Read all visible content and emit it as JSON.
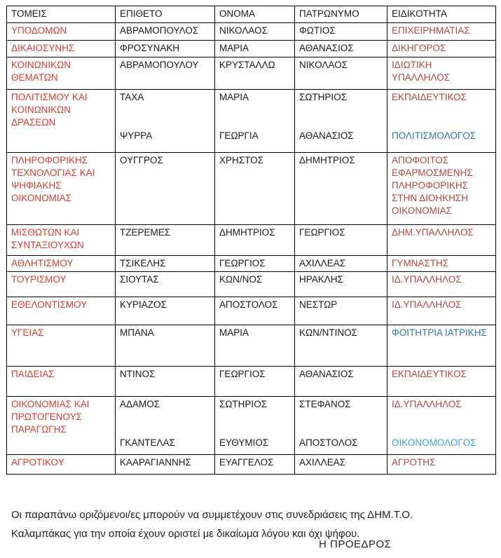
{
  "colors": {
    "sector_red": "#e03a2e",
    "red": "#b9453d",
    "blue": "#2e75b6",
    "lightblue": "#3ba3db",
    "text": "#1b1b1b"
  },
  "table": {
    "headers": [
      "ΤΟΜΕΙΣ",
      "ΕΠΙΘΕΤΟ",
      "ΟΝΟΜΑ",
      "ΠΑΤΡΩΝΥΜΟ",
      "ΕΙΔΙΚΟΤΗΤΑ"
    ],
    "rows": [
      {
        "sector": "ΥΠΟΔΟΜΩΝ",
        "entries": [
          {
            "surname": "ΑΒΡΑΜΟΠΟΥΛΟΣ",
            "name": "ΝΙΚΟΛΑΟΣ",
            "patronym": "ΦΩΤΙΟΣ",
            "specialty": "ΕΠΙΧΕΙΡΗΜΑΤΙΑΣ",
            "specialty_color": "red"
          }
        ]
      },
      {
        "sector": "ΔΙΚΑΙΟΣΥΝΗΣ",
        "entries": [
          {
            "surname": "ΦΡΟΣΥΝΑΚΗ",
            "name": "ΜΑΡΙΑ",
            "patronym": "ΑΘΑΝΑΣΙΟΣ",
            "specialty": "ΔΙΚΗΓΟΡΟΣ",
            "specialty_color": "red"
          }
        ]
      },
      {
        "sector": "ΚΟΙΝΩΝΙΚΩΝ ΘΕΜΑΤΩΝ",
        "entries": [
          {
            "surname": "ΑΒΡΑΜΟΠΟΥΛΟΥ",
            "name": "ΚΡΥΣΤΑΛΛΩ",
            "patronym": "ΝΙΚΟΛΑΟΣ",
            "specialty": "ΙΔΙΩΤΙΚΗ ΥΠΑΛΛΗΛΟΣ",
            "specialty_color": "red"
          }
        ]
      },
      {
        "sector": "ΠΟΛΙΤΙΣΜΟΥ ΚΑΙ ΚΟΙΝΩΝΙΚΩΝ ΔΡΑΣΕΩΝ",
        "entries": [
          {
            "surname": "ΤΑΧΑ",
            "name": "ΜΑΡΙΑ",
            "patronym": "ΣΩΤΗΡΙΟΣ",
            "specialty": "ΕΚΠΑΙΔΕΥΤΙΚΟΣ",
            "specialty_color": "red"
          },
          {
            "surname": "ΨΥΡΡΑ",
            "name": "ΓΕΩΡΓΙΑ",
            "patronym": "ΑΘΑΝΑΣΙΟΣ",
            "specialty": "ΠΟΛΙΤΙΣΜΟΛΟΓΟΣ",
            "specialty_color": "blue"
          }
        ]
      },
      {
        "sector": "ΠΛΗΡΟΦΟΡΙΚΗΣ ΤΕΧΝΟΛΟΓΙΑΣ ΚΑΙ ΨΗΦΙΑΚΗΣ ΟΙΚΟΝΟΜΙΑΣ",
        "entries": [
          {
            "surname": "ΟΥΓΓΡΟΣ",
            "name": "ΧΡΗΣΤΟΣ",
            "patronym": "ΔΗΜΗΤΡΙΟΣ",
            "specialty": "ΑΠΟΦΟΙΤΟΣ ΕΦΑΡΜΟΣΜΕΝΗΣ ΠΛΗΡΟΦΟΡΙΚΗΣ ΣΤΗΝ ΔΙΟΗΚΗΣΗ ΟΙΚΟΝΟΜΙΑΣ",
            "specialty_color": "red"
          }
        ]
      },
      {
        "sector": "ΜΙΣΘΩΤΩΝ ΚΑΙ ΣΥΝΤΑΞΙΟΥΧΩΝ",
        "entries": [
          {
            "surname": "ΤΖΕΡΕΜΕΣ",
            "name": "ΔΗΜΗΤΡΙΟΣ",
            "patronym": "ΓΕΩΡΓΙΟΣ",
            "specialty": "ΔΗΜ.ΥΠΑΛΛΗΛΟΣ",
            "specialty_color": "red"
          }
        ]
      },
      {
        "sector": "ΑΘΛΗΤΙΣΜΟΥ",
        "entries": [
          {
            "surname": "ΤΣΙΚΕΛΗΣ",
            "name": "ΓΕΩΡΓΙΟΣ",
            "patronym": "ΑΧΙΛΛΕΑΣ",
            "specialty": "ΓΥΜΝΑΣΤΗΣ",
            "specialty_color": "red"
          }
        ]
      },
      {
        "sector": "ΤΟΥΡΙΣΜΟΥ",
        "entries": [
          {
            "surname": "ΣΙΟΥΤΑΣ",
            "name": "ΚΩΝ/ΝΟΣ",
            "patronym": "ΗΡΑΚΛΗΣ",
            "specialty": "ΙΔ.ΥΠΑΛΛΗΛΟΣ",
            "specialty_color": "red"
          }
        ]
      },
      {
        "sector": "ΕΘΕΛΟΝΤΙΣΜΟΥ",
        "entries": [
          {
            "surname": "ΚΥΡΙΑΖΟΣ",
            "name": "ΑΠΟΣΤΟΛΟΣ",
            "patronym": "ΝΕΣΤΩΡ",
            "specialty": "ΙΔ.ΥΠΑΛΛΗΛΟΣ",
            "specialty_color": "red"
          }
        ]
      },
      {
        "sector": "ΥΓΕΙΑΣ",
        "entries": [
          {
            "surname": "ΜΠΑΝΑ",
            "name": "ΜΑΡΙΑ",
            "patronym": "ΚΩΝ/ΝΤΙΝΟΣ",
            "specialty": "ΦΟΙΤΗΤΡΙΑ ΙΑΤΡΙΚΗΣ",
            "specialty_color": "blue"
          }
        ]
      },
      {
        "sector": "ΠΑΙΔΕΙΑΣ",
        "entries": [
          {
            "surname": "ΝΤΙΝΟΣ",
            "name": "ΓΕΩΡΓΙΟΣ",
            "patronym": "ΑΘΑΝΑΣΙΟΣ",
            "specialty": "ΕΚΠΑΙΔΕΥΤΙΚΟΣ",
            "specialty_color": "red"
          }
        ]
      },
      {
        "sector": "ΟΙΚΟΝΟΜΙΑΣ ΚΑΙ ΠΡΩΤΟΓΕΝΟΥΣ ΠΑΡΑΓΩΓΗΣ",
        "entries": [
          {
            "surname": "ΑΔΑΜΟΣ",
            "name": "ΣΩΤΗΡΙΟΣ",
            "patronym": "ΣΤΕΦΑΝΟΣ",
            "specialty": "ΙΔ.ΥΠΑΛΛΗΛΟΣ",
            "specialty_color": "red"
          },
          {
            "surname": "ΓΚΑΝΤΕΛΑΣ",
            "name": "ΕΥΘΥΜΙΟΣ",
            "patronym": "ΑΠΟΣΤΟΛΟΣ",
            "specialty": "ΟΙΚΟΝΟΜΟΛΟΓΟΣ",
            "specialty_color": "lightblue"
          }
        ]
      },
      {
        "sector": "ΑΓΡΟΤΙΚΟΥ",
        "entries": [
          {
            "surname": "ΚΑΑΡΑΓΙΑΝΝΗΣ",
            "name": "ΕΥΑΓΓΕΛΟΣ",
            "patronym": "ΑΧΙΛΛΕΑΣ",
            "specialty": "ΑΓΡΟΤΗΣ",
            "specialty_color": "red"
          }
        ]
      }
    ]
  },
  "footer": {
    "note": "Οι παραπάνω οριζόμενοι/ες μπορούν να συμμετέχουν στις συνεδριάσεις της ΔΗΜ.Τ.Ο. Καλαμπάκας για την οποία έχουν οριστεί με δικαίωμα λόγου και όχι ψήφου.",
    "signature": "Η ΠΡΟΕΔΡΟΣ"
  }
}
